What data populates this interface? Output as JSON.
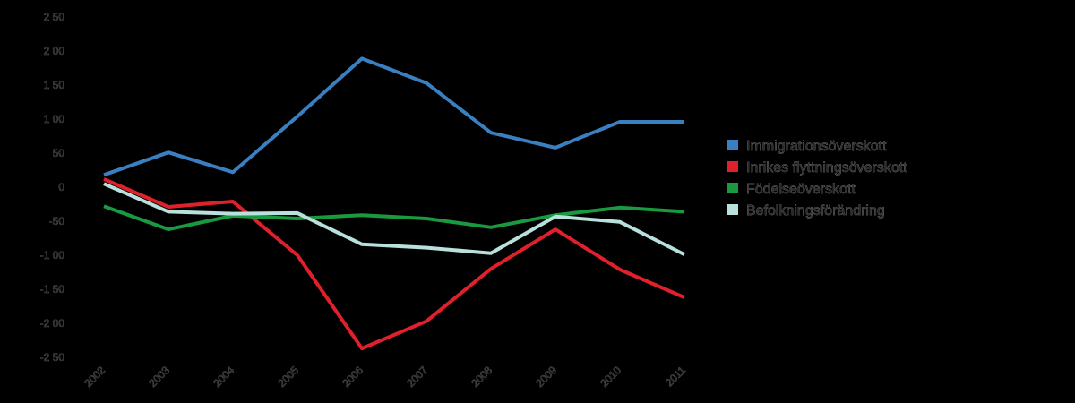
{
  "chart_data": {
    "type": "line",
    "title": "",
    "xlabel": "",
    "ylabel": "",
    "x": [
      "2002",
      "2003",
      "2004",
      "2005",
      "2006",
      "2007",
      "2008",
      "2009",
      "2010",
      "2011"
    ],
    "y_ticks": [
      250,
      200,
      150,
      100,
      50,
      0,
      -50,
      -100,
      -150,
      -200,
      -250
    ],
    "y_tick_labels": [
      "2 50",
      "2 00",
      "1 50",
      "1 00",
      "50",
      "0",
      "-50",
      "-1 00",
      "-1 50",
      "-2 00",
      "-2 50"
    ],
    "ylim": [
      -250,
      250
    ],
    "grid": false,
    "legend": "right",
    "series": [
      {
        "name": "Immigrationsöverskott",
        "color": "#3a7fc1",
        "values": [
          18,
          51,
          22,
          104,
          189,
          153,
          80,
          58,
          96,
          96
        ]
      },
      {
        "name": "Inrikes flyttningsöverskott",
        "color": "#e0202a",
        "values": [
          12,
          -29,
          -21,
          -100,
          -237,
          -197,
          -120,
          -62,
          -121,
          -162
        ]
      },
      {
        "name": "Födelseöverskott",
        "color": "#1a9a40",
        "values": [
          -28,
          -62,
          -42,
          -46,
          -41,
          -46,
          -59,
          -41,
          -30,
          -36
        ]
      },
      {
        "name": "Befolkningsförändring",
        "color": "#b8e0dc",
        "values": [
          5,
          -36,
          -39,
          -38,
          -84,
          -89,
          -97,
          -43,
          -51,
          -99
        ]
      }
    ]
  }
}
